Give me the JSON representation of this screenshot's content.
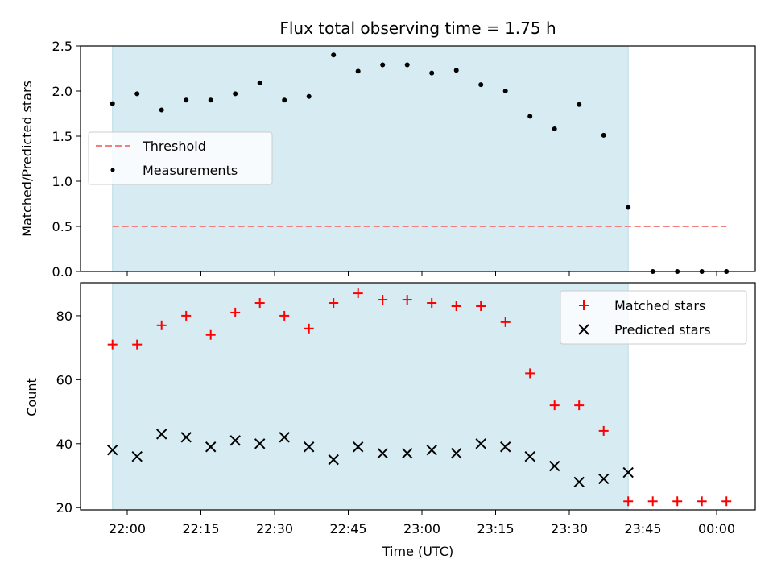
{
  "chart_data": [
    {
      "type": "scatter",
      "title": "Flux total observing time = 1.75 h",
      "xlabel": "",
      "ylabel": "Matched/Predicted stars",
      "ylim": [
        0,
        2.5
      ],
      "yticks": [
        "0.0",
        "0.5",
        "1.0",
        "1.5",
        "2.0",
        "2.5"
      ],
      "shaded_interval": [
        "21:57",
        "23:42"
      ],
      "shade_color": "#add8e6",
      "legend_position": "center-left",
      "series": [
        {
          "name": "Threshold",
          "style": "dashed-line",
          "color": "#f08080",
          "x": [
            "21:57",
            "00:02"
          ],
          "y": [
            0.5,
            0.5
          ]
        },
        {
          "name": "Measurements",
          "style": "dot",
          "color": "#000000",
          "x": [
            "21:57",
            "22:02",
            "22:07",
            "22:12",
            "22:17",
            "22:22",
            "22:27",
            "22:32",
            "22:37",
            "22:42",
            "22:47",
            "22:52",
            "22:57",
            "23:02",
            "23:07",
            "23:12",
            "23:17",
            "23:22",
            "23:27",
            "23:32",
            "23:37",
            "23:42",
            "23:47",
            "23:52",
            "23:57",
            "00:02"
          ],
          "y": [
            1.86,
            1.97,
            1.79,
            1.9,
            1.9,
            1.97,
            2.09,
            1.9,
            1.94,
            2.4,
            2.22,
            2.29,
            2.29,
            2.2,
            2.23,
            2.07,
            2.0,
            1.72,
            1.58,
            1.85,
            1.51,
            0.71,
            0.0,
            0.0,
            0.0,
            0.0
          ]
        }
      ]
    },
    {
      "type": "scatter",
      "title": "",
      "xlabel": "Time (UTC)",
      "ylabel": "Count",
      "ylim": [
        19.3,
        90.3
      ],
      "yticks": [
        "20",
        "40",
        "60",
        "80"
      ],
      "xticks": [
        "22:00",
        "22:15",
        "22:30",
        "22:45",
        "23:00",
        "23:15",
        "23:30",
        "23:45",
        "00:00"
      ],
      "shaded_interval": [
        "21:57",
        "23:42"
      ],
      "shade_color": "#add8e6",
      "legend_position": "top-right",
      "series": [
        {
          "name": "Matched stars",
          "marker": "+",
          "color": "#ff0000",
          "x": [
            "21:57",
            "22:02",
            "22:07",
            "22:12",
            "22:17",
            "22:22",
            "22:27",
            "22:32",
            "22:37",
            "22:42",
            "22:47",
            "22:52",
            "22:57",
            "23:02",
            "23:07",
            "23:12",
            "23:17",
            "23:22",
            "23:27",
            "23:32",
            "23:37",
            "23:42",
            "23:47",
            "23:52",
            "23:57",
            "00:02"
          ],
          "y": [
            71,
            71,
            77,
            80,
            74,
            81,
            84,
            80,
            76,
            84,
            87,
            85,
            85,
            84,
            83,
            83,
            78,
            62,
            52,
            52,
            44,
            22,
            22,
            22,
            22,
            22
          ]
        },
        {
          "name": "Predicted stars",
          "marker": "x",
          "color": "#000000",
          "x": [
            "21:57",
            "22:02",
            "22:07",
            "22:12",
            "22:17",
            "22:22",
            "22:27",
            "22:32",
            "22:37",
            "22:42",
            "22:47",
            "22:52",
            "22:57",
            "23:02",
            "23:07",
            "23:12",
            "23:17",
            "23:22",
            "23:27",
            "23:32",
            "23:37",
            "23:42"
          ],
          "y": [
            38,
            36,
            43,
            42,
            39,
            41,
            40,
            42,
            39,
            35,
            39,
            37,
            37,
            38,
            37,
            40,
            39,
            36,
            33,
            28,
            29,
            31
          ]
        }
      ]
    }
  ]
}
